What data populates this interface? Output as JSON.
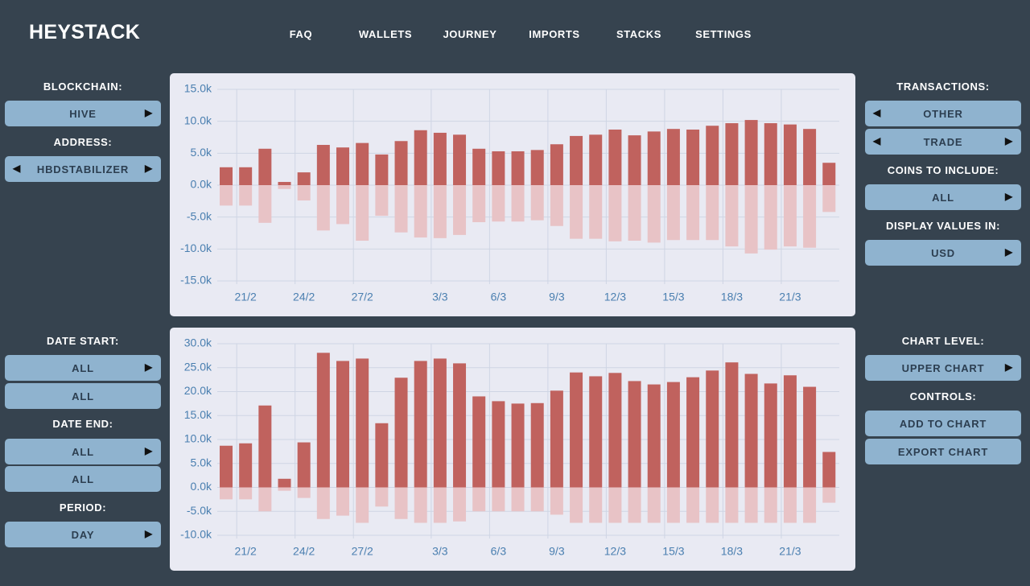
{
  "header": {
    "brand": "HEYSTACK",
    "nav": [
      "FAQ",
      "WALLETS",
      "JOURNEY",
      "IMPORTS",
      "STACKS",
      "SETTINGS"
    ]
  },
  "left_panel": {
    "blockchain_label": "BLOCKCHAIN:",
    "blockchain": "HIVE",
    "address_label": "ADDRESS:",
    "address": "HBDSTABILIZER",
    "date_start_label": "DATE START:",
    "date_start": [
      "ALL",
      "ALL"
    ],
    "date_end_label": "DATE END:",
    "date_end": [
      "ALL",
      "ALL"
    ],
    "period_label": "PERIOD:",
    "period": "DAY"
  },
  "right_panel": {
    "transactions_label": "TRANSACTIONS:",
    "transactions": [
      "OTHER",
      "TRADE"
    ],
    "coins_label": "COINS TO INCLUDE:",
    "coins": "ALL",
    "display_label": "DISPLAY VALUES IN:",
    "display": "USD",
    "chart_level_label": "CHART LEVEL:",
    "chart_level": "UPPER CHART",
    "controls_label": "CONTROLS:",
    "controls": [
      "ADD TO CHART",
      "EXPORT CHART"
    ]
  },
  "charts": [
    {
      "type": "bar",
      "grid": true,
      "categories": [
        null,
        "21/2",
        null,
        null,
        "24/2",
        null,
        null,
        "27/2",
        null,
        null,
        null,
        "3/3",
        null,
        null,
        "6/3",
        null,
        null,
        "9/3",
        null,
        null,
        "12/3",
        null,
        null,
        "15/3",
        null,
        null,
        "18/3",
        null,
        null,
        "21/3",
        null,
        null
      ],
      "series": [
        {
          "color": "#c0625e",
          "values": [
            2800,
            2800,
            5700,
            500,
            2000,
            6300,
            5900,
            6600,
            4800,
            6900,
            8600,
            8200,
            7900,
            5700,
            5300,
            5300,
            5500,
            6400,
            7700,
            7900,
            8700,
            7800,
            8400,
            8800,
            8700,
            9300,
            9700,
            10200,
            9700,
            9500,
            8800,
            3500
          ]
        },
        {
          "color": "#e8c3c6",
          "values": [
            -3200,
            -3200,
            -5900,
            -600,
            -2400,
            -7100,
            -6100,
            -8700,
            -4800,
            -7400,
            -8200,
            -8300,
            -7800,
            -5800,
            -5700,
            -5700,
            -5500,
            -6400,
            -8400,
            -8400,
            -8800,
            -8700,
            -9000,
            -8600,
            -8600,
            -8600,
            -9600,
            -10700,
            -10100,
            -9600,
            -9800,
            -4200
          ]
        }
      ],
      "ylim": [
        -15000,
        15000
      ],
      "yticks": [
        {
          "value": 15000,
          "label": "15.0k"
        },
        {
          "value": 10000,
          "label": "10.0k"
        },
        {
          "value": 5000,
          "label": "5.0k"
        },
        {
          "value": 0,
          "label": "0.0k"
        },
        {
          "value": -5000,
          "label": "-5.0k"
        },
        {
          "value": -10000,
          "label": "-10.0k"
        },
        {
          "value": -15000,
          "label": "-15.0k"
        }
      ]
    },
    {
      "type": "bar",
      "grid": true,
      "categories": [
        null,
        "21/2",
        null,
        null,
        "24/2",
        null,
        null,
        "27/2",
        null,
        null,
        null,
        "3/3",
        null,
        null,
        "6/3",
        null,
        null,
        "9/3",
        null,
        null,
        "12/3",
        null,
        null,
        "15/3",
        null,
        null,
        "18/3",
        null,
        null,
        "21/3",
        null,
        null
      ],
      "series": [
        {
          "color": "#c0625e",
          "values": [
            8700,
            9200,
            17100,
            1800,
            9400,
            28100,
            26400,
            26900,
            13400,
            22900,
            26400,
            26900,
            25900,
            19000,
            18000,
            17500,
            17600,
            20200,
            24000,
            23200,
            23900,
            22200,
            21500,
            22000,
            23000,
            24400,
            26100,
            23700,
            21700,
            23400,
            21000,
            7400
          ]
        },
        {
          "color": "#e8c3c6",
          "values": [
            -2500,
            -2500,
            -5000,
            -700,
            -2200,
            -6600,
            -5900,
            -7400,
            -4000,
            -6600,
            -7400,
            -7400,
            -7100,
            -5000,
            -5000,
            -5000,
            -5000,
            -5700,
            -7400,
            -7400,
            -7400,
            -7400,
            -7400,
            -7400,
            -7400,
            -7400,
            -7400,
            -7400,
            -7400,
            -7400,
            -7400,
            -3200
          ]
        }
      ],
      "ylim": [
        -10000,
        30000
      ],
      "yticks": [
        {
          "value": 30000,
          "label": "30.0k"
        },
        {
          "value": 25000,
          "label": "25.0k"
        },
        {
          "value": 20000,
          "label": "20.0k"
        },
        {
          "value": 15000,
          "label": "15.0k"
        },
        {
          "value": 10000,
          "label": "10.0k"
        },
        {
          "value": 5000,
          "label": "5.0k"
        },
        {
          "value": 0,
          "label": "0.0k"
        },
        {
          "value": -5000,
          "label": "-5.0k"
        },
        {
          "value": -10000,
          "label": "-10.0k"
        }
      ]
    }
  ]
}
